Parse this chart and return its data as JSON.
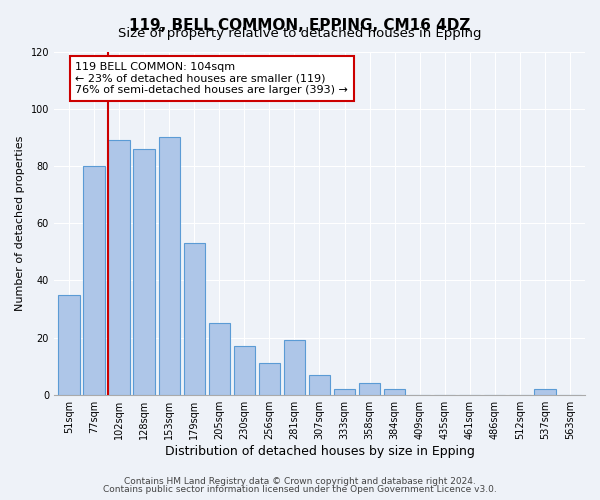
{
  "title": "119, BELL COMMON, EPPING, CM16 4DZ",
  "subtitle": "Size of property relative to detached houses in Epping",
  "xlabel": "Distribution of detached houses by size in Epping",
  "ylabel": "Number of detached properties",
  "bar_labels": [
    "51sqm",
    "77sqm",
    "102sqm",
    "128sqm",
    "153sqm",
    "179sqm",
    "205sqm",
    "230sqm",
    "256sqm",
    "281sqm",
    "307sqm",
    "333sqm",
    "358sqm",
    "384sqm",
    "409sqm",
    "435sqm",
    "461sqm",
    "486sqm",
    "512sqm",
    "537sqm",
    "563sqm"
  ],
  "bar_heights": [
    35,
    80,
    89,
    86,
    90,
    53,
    25,
    17,
    11,
    19,
    7,
    2,
    4,
    2,
    0,
    0,
    0,
    0,
    0,
    2,
    0
  ],
  "bar_color": "#aec6e8",
  "bar_edge_color": "#5b9bd5",
  "reference_line_index": 2,
  "reference_line_color": "#cc0000",
  "annotation_text": "119 BELL COMMON: 104sqm\n← 23% of detached houses are smaller (119)\n76% of semi-detached houses are larger (393) →",
  "ylim": [
    0,
    120
  ],
  "yticks": [
    0,
    20,
    40,
    60,
    80,
    100,
    120
  ],
  "footer_line1": "Contains HM Land Registry data © Crown copyright and database right 2024.",
  "footer_line2": "Contains public sector information licensed under the Open Government Licence v3.0.",
  "background_color": "#eef2f8",
  "grid_color": "#ffffff",
  "title_fontsize": 11,
  "subtitle_fontsize": 9.5,
  "xlabel_fontsize": 9,
  "ylabel_fontsize": 8,
  "tick_fontsize": 7,
  "annotation_fontsize": 8,
  "footer_fontsize": 6.5
}
